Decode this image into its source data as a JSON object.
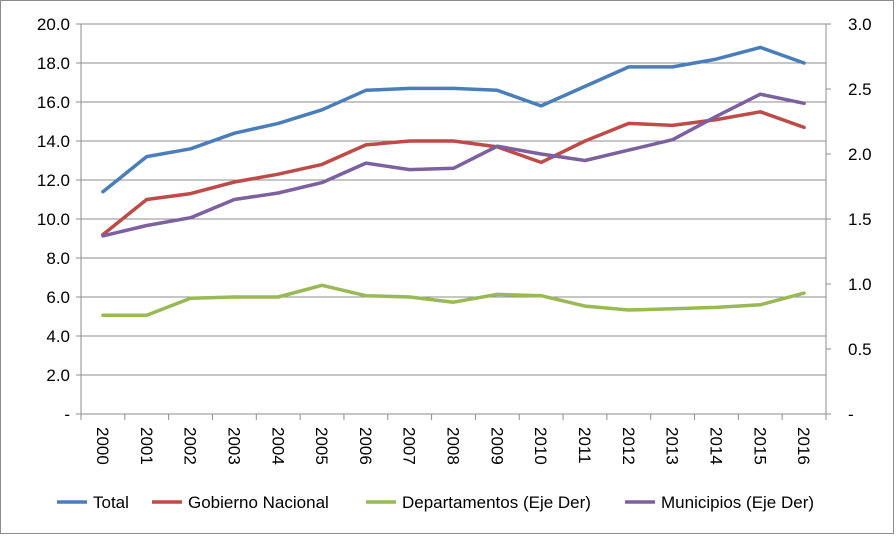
{
  "chart_data": {
    "type": "line",
    "title": "",
    "xlabel": "",
    "ylabel": "",
    "categories": [
      "2000",
      "2001",
      "2002",
      "2003",
      "2004",
      "2005",
      "2006",
      "2007",
      "2008",
      "2009",
      "2010",
      "2011",
      "2012",
      "2013",
      "2014",
      "2015",
      "2016"
    ],
    "y_left": {
      "ylim": [
        0,
        20
      ],
      "ticks": [
        "-",
        "2.0",
        "4.0",
        "6.0",
        "8.0",
        "10.0",
        "12.0",
        "14.0",
        "16.0",
        "18.0",
        "20.0"
      ],
      "tick_values": [
        0,
        2,
        4,
        6,
        8,
        10,
        12,
        14,
        16,
        18,
        20
      ]
    },
    "y_right": {
      "ylim": [
        0,
        3
      ],
      "ticks": [
        "-",
        "0.5",
        "1.0",
        "1.5",
        "2.0",
        "2.5",
        "3.0"
      ],
      "tick_values": [
        0,
        0.5,
        1.0,
        1.5,
        2.0,
        2.5,
        3.0
      ]
    },
    "grid": true,
    "legend_position": "bottom",
    "series": [
      {
        "name": "Total",
        "axis": "left",
        "color": "#4a7ebb",
        "values": [
          11.4,
          13.2,
          13.6,
          14.4,
          14.9,
          15.6,
          16.6,
          16.7,
          16.7,
          16.6,
          15.8,
          16.8,
          17.8,
          17.8,
          18.2,
          18.8,
          18.0
        ]
      },
      {
        "name": "Gobierno Nacional",
        "axis": "left",
        "color": "#be4b48",
        "values": [
          9.2,
          11.0,
          11.3,
          11.9,
          12.3,
          12.8,
          13.8,
          14.0,
          14.0,
          13.7,
          12.9,
          14.0,
          14.9,
          14.8,
          15.1,
          15.5,
          14.7
        ]
      },
      {
        "name": "Departamentos (Eje Der)",
        "axis": "right",
        "color": "#98b954",
        "values": [
          0.76,
          0.76,
          0.89,
          0.9,
          0.9,
          0.99,
          0.91,
          0.9,
          0.86,
          0.92,
          0.91,
          0.83,
          0.8,
          0.81,
          0.82,
          0.84,
          0.93
        ]
      },
      {
        "name": "Municipios (Eje Der)",
        "axis": "right",
        "color": "#7d60a0",
        "values": [
          1.37,
          1.45,
          1.51,
          1.65,
          1.7,
          1.78,
          1.93,
          1.88,
          1.89,
          2.06,
          2.0,
          1.95,
          2.03,
          2.11,
          2.29,
          2.46,
          2.39
        ]
      }
    ]
  }
}
